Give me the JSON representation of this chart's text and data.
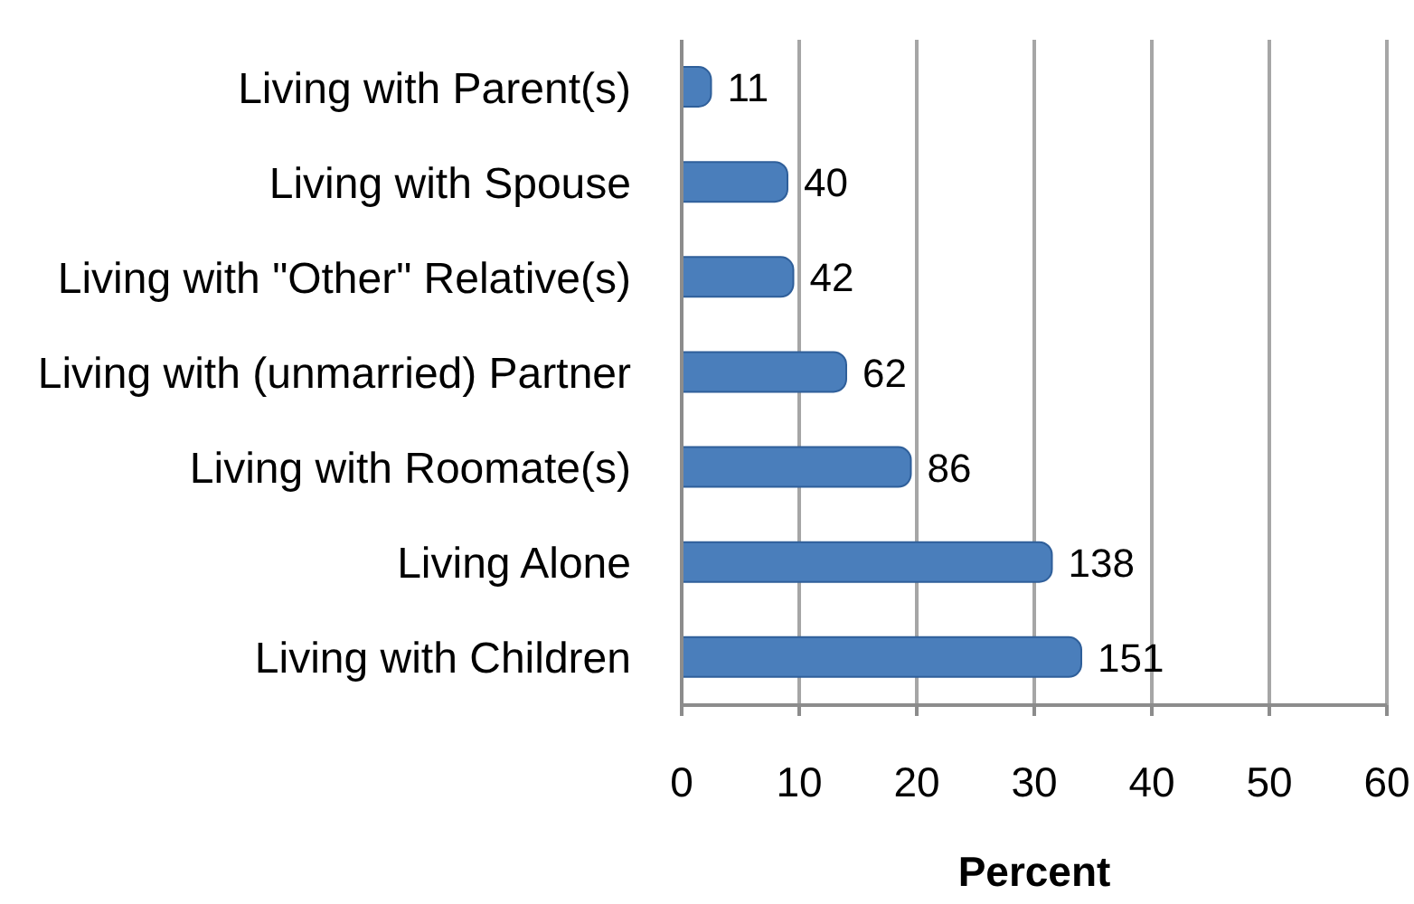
{
  "chart_data": {
    "type": "bar",
    "orientation": "horizontal",
    "xlabel": "Percent",
    "categories": [
      "Living with Parent(s)",
      "Living with Spouse",
      "Living with \"Other\" Relative(s)",
      "Living with (unmarried) Partner",
      "Living with Roomate(s)",
      "Living Alone",
      "Living with Children"
    ],
    "values": [
      2.5,
      9,
      9.5,
      14,
      19.5,
      31.5,
      34
    ],
    "annotations": [
      {
        "text": "11",
        "x": 2.5,
        "y": "Living with Parent(s)"
      },
      {
        "text": "40",
        "x": 9,
        "y": "Living with Spouse"
      },
      {
        "text": "42",
        "x": 9.5,
        "y": "Living with \"Other\" Relative(s)"
      },
      {
        "text": "62",
        "x": 14,
        "y": "Living with (unmarried) Partner"
      },
      {
        "text": "86",
        "x": 19.5,
        "y": "Living with Roomate(s)"
      },
      {
        "text": "138",
        "x": 31.5,
        "y": "Living Alone"
      },
      {
        "text": "151",
        "x": 34,
        "y": "Living with Children"
      }
    ],
    "color": "#4a7ebb",
    "xlim": [
      0,
      60
    ],
    "xticks": [
      0,
      10,
      20,
      30,
      40,
      50,
      60
    ],
    "grid": "x"
  }
}
